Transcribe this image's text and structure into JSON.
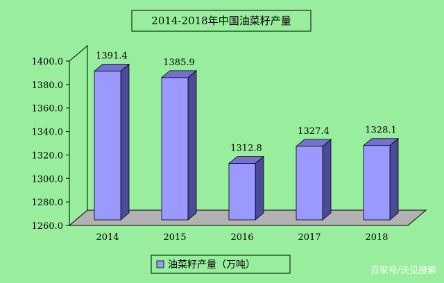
{
  "chart_data": {
    "type": "bar",
    "title": "2014-2018年中国油菜籽产量",
    "categories": [
      "2014",
      "2015",
      "2016",
      "2017",
      "2018"
    ],
    "series": [
      {
        "name": "油菜籽产量（万吨）",
        "values": [
          1391.4,
          1385.9,
          1312.8,
          1327.4,
          1328.1
        ]
      }
    ],
    "data_labels": [
      "1391.4",
      "1385.9",
      "1312.8",
      "1327.4",
      "1328.1"
    ],
    "ylim": [
      1260,
      1400
    ],
    "yticks": [
      "1400.0",
      "1380.0",
      "1360.0",
      "1340.0",
      "1320.0",
      "1300.0",
      "1280.0",
      "1260.0"
    ],
    "ytick_values": [
      1400,
      1380,
      1360,
      1340,
      1320,
      1300,
      1280,
      1260
    ],
    "grid": false,
    "legend_position": "bottom",
    "style": "3d"
  },
  "colors": {
    "background": "#98ee9c",
    "bar_front": "#9a99ff",
    "bar_side": "#4a4a98",
    "bar_top": "#7473cc",
    "floor": "#b2b2b2",
    "wall_line": "#000000"
  },
  "watermark": "百家号/沃见搜索"
}
